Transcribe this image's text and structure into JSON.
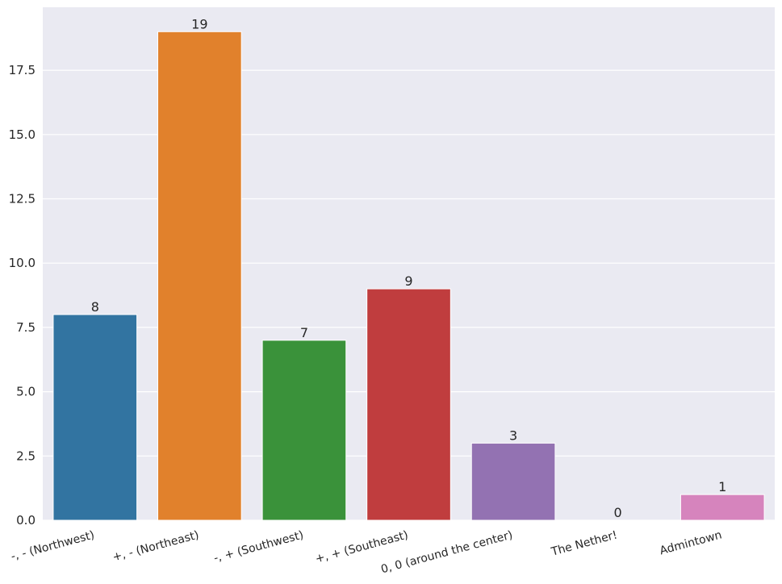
{
  "chart_data": {
    "type": "bar",
    "title": "",
    "xlabel": "",
    "ylabel": "",
    "categories": [
      "-, - (Northwest)",
      "+, - (Northeast)",
      "-, + (Southwest)",
      "+, + (Southeast)",
      "0, 0 (around the center)",
      "The Nether!",
      "Admintown"
    ],
    "values": [
      8,
      19,
      7,
      9,
      3,
      0,
      1
    ],
    "data_labels": [
      "8",
      "19",
      "7",
      "9",
      "3",
      "0",
      "1"
    ],
    "colors": [
      "#3274a1",
      "#e1812c",
      "#3a923a",
      "#c03d3e",
      "#9372b2",
      "#845b53",
      "#d684bd"
    ],
    "ylim": [
      0,
      19.95
    ],
    "yticks": [
      0,
      2.5,
      5,
      7.5,
      10,
      12.5,
      15,
      17.5
    ],
    "ytick_labels": [
      "0.0",
      "2.5",
      "5.0",
      "7.5",
      "10.0",
      "12.5",
      "15.0",
      "17.5"
    ],
    "grid": true,
    "background": "#eaeaf2",
    "legend": "none"
  }
}
